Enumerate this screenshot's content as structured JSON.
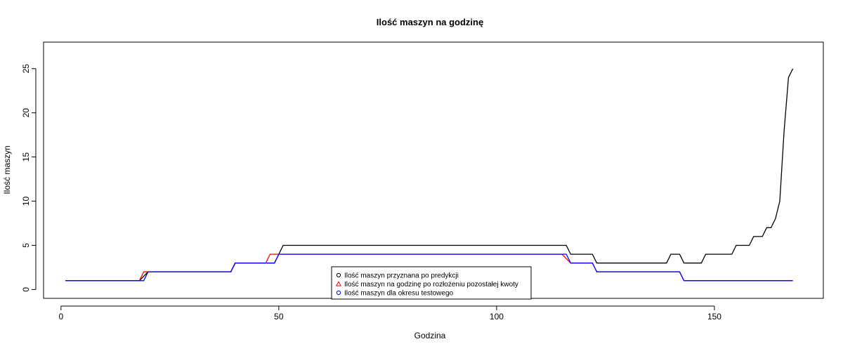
{
  "chart_data": {
    "type": "line",
    "title": "Ilość maszyn na godzinę",
    "xlabel": "Godzina",
    "ylabel": "Ilość maszyn",
    "xlim": [
      -4,
      175
    ],
    "ylim": [
      -1,
      28
    ],
    "xticks": [
      0,
      50,
      100,
      150
    ],
    "yticks": [
      0,
      5,
      10,
      15,
      20,
      25
    ],
    "grid": false,
    "legend_position": "bottom-center",
    "series": [
      {
        "name": "Ilość maszyn przyznana po predykcji",
        "color": "#000000",
        "marker": "circle",
        "points": [
          [
            1,
            1
          ],
          [
            18,
            1
          ],
          [
            20,
            2
          ],
          [
            39,
            2
          ],
          [
            40,
            3
          ],
          [
            49,
            3
          ],
          [
            51,
            5
          ],
          [
            116,
            5
          ],
          [
            117,
            4
          ],
          [
            122,
            4
          ],
          [
            123,
            3
          ],
          [
            139,
            3
          ],
          [
            140,
            4
          ],
          [
            142,
            4
          ],
          [
            143,
            3
          ],
          [
            147,
            3
          ],
          [
            148,
            4
          ],
          [
            154,
            4
          ],
          [
            155,
            5
          ],
          [
            158,
            5
          ],
          [
            159,
            6
          ],
          [
            161,
            6
          ],
          [
            162,
            7
          ],
          [
            163,
            7
          ],
          [
            164,
            8
          ],
          [
            165,
            10
          ],
          [
            166,
            18
          ],
          [
            167,
            24
          ],
          [
            168,
            25
          ]
        ]
      },
      {
        "name": "Ilość maszyn na godzinę po rozłożeniu pozostałej kwoty",
        "color": "#ff0000",
        "marker": "triangle",
        "points": [
          [
            1,
            1
          ],
          [
            18,
            1
          ],
          [
            19,
            2
          ],
          [
            39,
            2
          ],
          [
            40,
            3
          ],
          [
            47,
            3
          ],
          [
            48,
            4
          ],
          [
            115,
            4
          ],
          [
            117,
            3
          ],
          [
            122,
            3
          ],
          [
            123,
            2
          ],
          [
            142,
            2
          ],
          [
            143,
            1
          ],
          [
            168,
            1
          ]
        ]
      },
      {
        "name": "Ilość maszyn dla okresu testowego",
        "color": "#0000ff",
        "marker": "circle",
        "points": [
          [
            1,
            1
          ],
          [
            19,
            1
          ],
          [
            20,
            2
          ],
          [
            39,
            2
          ],
          [
            40,
            3
          ],
          [
            49,
            3
          ],
          [
            50,
            4
          ],
          [
            116,
            4
          ],
          [
            117,
            3
          ],
          [
            122,
            3
          ],
          [
            123,
            2
          ],
          [
            142,
            2
          ],
          [
            143,
            1
          ],
          [
            168,
            1
          ]
        ]
      }
    ]
  }
}
